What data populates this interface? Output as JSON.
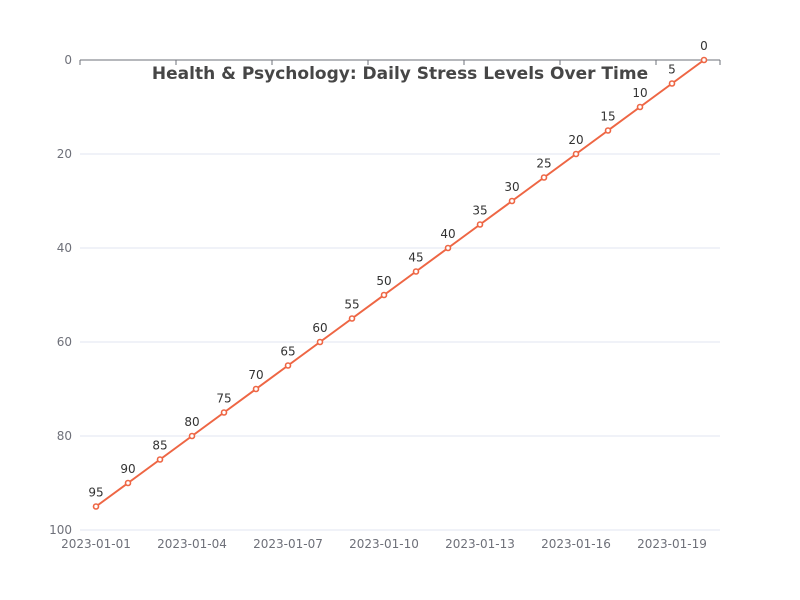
{
  "chart_data": {
    "type": "line",
    "title": "Health & Psychology: Daily Stress Levels Over Time",
    "xlabel": "",
    "ylabel": "",
    "x": [
      "2023-01-01",
      "2023-01-02",
      "2023-01-03",
      "2023-01-04",
      "2023-01-05",
      "2023-01-06",
      "2023-01-07",
      "2023-01-08",
      "2023-01-09",
      "2023-01-10",
      "2023-01-11",
      "2023-01-12",
      "2023-01-13",
      "2023-01-14",
      "2023-01-15",
      "2023-01-16",
      "2023-01-17",
      "2023-01-18",
      "2023-01-19",
      "2023-01-20"
    ],
    "x_tick_labels": [
      "2023-01-01",
      "2023-01-04",
      "2023-01-07",
      "2023-01-10",
      "2023-01-13",
      "2023-01-16",
      "2023-01-19"
    ],
    "series": [
      {
        "values": [
          95,
          90,
          85,
          80,
          75,
          70,
          65,
          60,
          55,
          50,
          45,
          40,
          35,
          30,
          25,
          20,
          15,
          10,
          5,
          0
        ]
      }
    ],
    "ylim": [
      0,
      100
    ],
    "y_inverted": true,
    "y_ticks": [
      0,
      20,
      40,
      60,
      80,
      100
    ],
    "grid": true,
    "colors": {
      "line": "#ee6644",
      "grid": "#e0e6f1",
      "axis": "#6e7079"
    }
  }
}
